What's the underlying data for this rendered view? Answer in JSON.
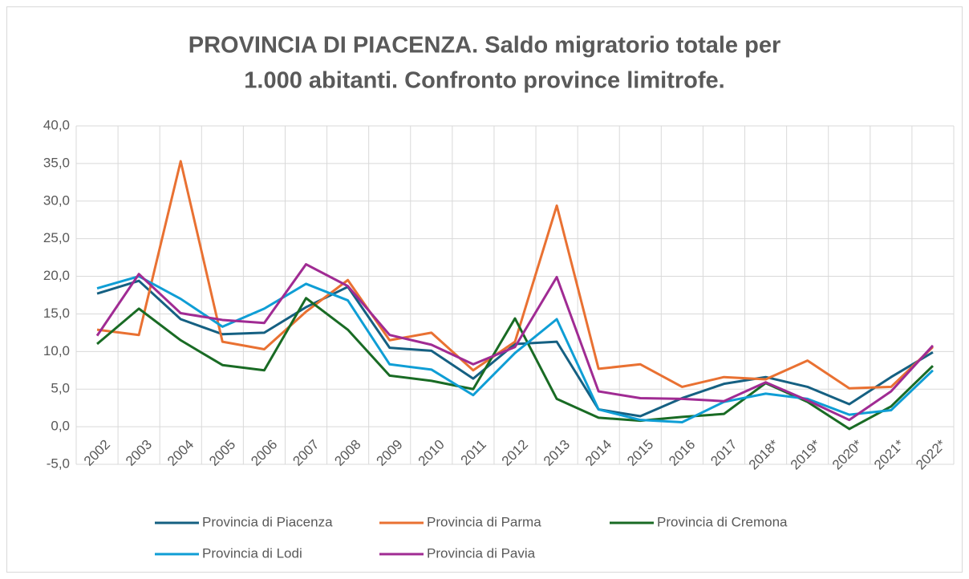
{
  "chart_data": {
    "type": "line",
    "title": [
      "PROVINCIA DI PIACENZA. Saldo migratorio totale per",
      "1.000 abitanti. Confronto province limitrofe."
    ],
    "categories": [
      "2002",
      "2003",
      "2004",
      "2005",
      "2006",
      "2007",
      "2008",
      "2009",
      "2010",
      "2011",
      "2012",
      "2013",
      "2014",
      "2015",
      "2016",
      "2017",
      "2018*",
      "2019*",
      "2020*",
      "2021*",
      "2022*"
    ],
    "series": [
      {
        "name": "Provincia di Piacenza",
        "color": "#156082",
        "values": [
          17.7,
          19.4,
          14.3,
          12.3,
          12.5,
          15.9,
          18.6,
          10.5,
          10.1,
          6.4,
          11.0,
          11.3,
          2.3,
          1.4,
          3.8,
          5.7,
          6.6,
          5.3,
          3.0,
          6.6,
          9.9
        ]
      },
      {
        "name": "Provincia di Parma",
        "color": "#e97132",
        "values": [
          12.9,
          12.2,
          35.3,
          11.3,
          10.3,
          15.3,
          19.5,
          11.5,
          12.5,
          7.5,
          11.3,
          29.4,
          7.7,
          8.3,
          5.3,
          6.6,
          6.3,
          8.8,
          5.1,
          5.3,
          10.6
        ]
      },
      {
        "name": "Provincia di Cremona",
        "color": "#196b24",
        "values": [
          11.0,
          15.7,
          11.5,
          8.2,
          7.5,
          17.1,
          12.9,
          6.8,
          6.1,
          5.0,
          14.4,
          3.7,
          1.2,
          0.8,
          1.3,
          1.7,
          5.8,
          3.3,
          -0.3,
          2.7,
          8.1
        ]
      },
      {
        "name": "Provincia di Lodi",
        "color": "#0f9ed5",
        "values": [
          18.4,
          20.0,
          17.0,
          13.3,
          15.7,
          19.0,
          16.8,
          8.3,
          7.6,
          4.2,
          9.8,
          14.3,
          2.3,
          0.9,
          0.6,
          3.3,
          4.4,
          3.7,
          1.6,
          2.2,
          7.5
        ]
      },
      {
        "name": "Provincia di Pavia",
        "color": "#a02b93",
        "values": [
          12.1,
          20.3,
          15.1,
          14.2,
          13.8,
          21.6,
          18.7,
          12.2,
          10.9,
          8.3,
          10.6,
          19.9,
          4.7,
          3.8,
          3.7,
          3.4,
          5.9,
          3.5,
          0.9,
          4.7,
          10.8
        ]
      }
    ],
    "ylim": [
      -5,
      40
    ],
    "yticks": [
      {
        "value": -5,
        "label": "-5,0"
      },
      {
        "value": 0,
        "label": "0,0"
      },
      {
        "value": 5,
        "label": "5,0"
      },
      {
        "value": 10,
        "label": "10,0"
      },
      {
        "value": 15,
        "label": "15,0"
      },
      {
        "value": 20,
        "label": "20,0"
      },
      {
        "value": 25,
        "label": "25,0"
      },
      {
        "value": 30,
        "label": "30,0"
      },
      {
        "value": 35,
        "label": "35,0"
      },
      {
        "value": 40,
        "label": "40,0"
      }
    ],
    "grid": true,
    "legend": "bottom"
  }
}
